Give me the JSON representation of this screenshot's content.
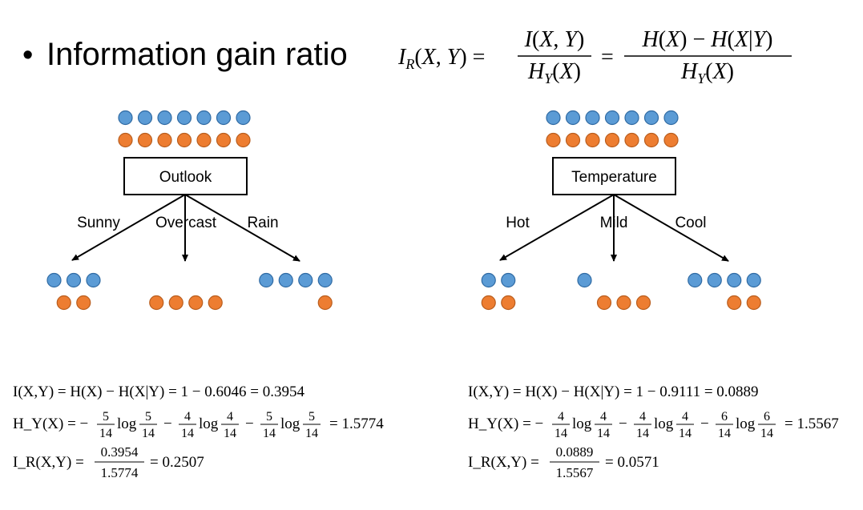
{
  "title": {
    "bullet": "•",
    "text": "Information gain ratio"
  },
  "header_formula": {
    "lhs": "I_R(X,Y) =",
    "frac1_num": "I(X,Y)",
    "frac1_den": "H_Y(X)",
    "equals": "=",
    "frac2_num": "H(X) − H(X|Y)",
    "frac2_den": "H_Y(X)"
  },
  "colors": {
    "blue": "#5b9bd5",
    "blue_stroke": "#2f6aa3",
    "orange": "#ed7d31",
    "orange_stroke": "#b95d1d",
    "ink": "#000000"
  },
  "trees": [
    {
      "root_label": "Outlook",
      "root_blue": 7,
      "root_orange": 7,
      "branches": [
        {
          "label": "Sunny",
          "blue": 3,
          "orange": 2
        },
        {
          "label": "Overcast",
          "blue": 0,
          "orange": 4
        },
        {
          "label": "Rain",
          "blue": 4,
          "orange": 1
        }
      ],
      "formulas": {
        "info_gain": "I(X,Y) = H(X) − H(X|Y) = 1 − 0.6046 = 0.3954",
        "split_prefix": "H_Y(X) = −",
        "split_terms": [
          {
            "num": "5",
            "den": "14",
            "sign": "−"
          },
          {
            "num": "4",
            "den": "14",
            "sign": "−"
          },
          {
            "num": "5",
            "den": "14",
            "sign": ""
          }
        ],
        "log_word": "log",
        "split_result": "= 1.5774",
        "ratio_lhs": "I_R(X,Y) =",
        "ratio_num": "0.3954",
        "ratio_den": "1.5774",
        "ratio_result": "= 0.2507"
      }
    },
    {
      "root_label": "Temperature",
      "root_blue": 7,
      "root_orange": 7,
      "branches": [
        {
          "label": "Hot",
          "blue": 2,
          "orange": 2
        },
        {
          "label": "Mild",
          "blue": 1,
          "orange": 3
        },
        {
          "label": "Cool",
          "blue": 4,
          "orange": 2
        }
      ],
      "formulas": {
        "info_gain": "I(X,Y) = H(X) − H(X|Y) = 1 − 0.9111 = 0.0889",
        "split_prefix": "H_Y(X) = −",
        "split_terms": [
          {
            "num": "4",
            "den": "14",
            "sign": "−"
          },
          {
            "num": "4",
            "den": "14",
            "sign": "−"
          },
          {
            "num": "6",
            "den": "14",
            "sign": ""
          }
        ],
        "log_word": "log",
        "split_result": "= 1.5567",
        "ratio_lhs": "I_R(X,Y) =",
        "ratio_num": "0.0889",
        "ratio_den": "1.5567",
        "ratio_result": "= 0.0571"
      }
    }
  ]
}
